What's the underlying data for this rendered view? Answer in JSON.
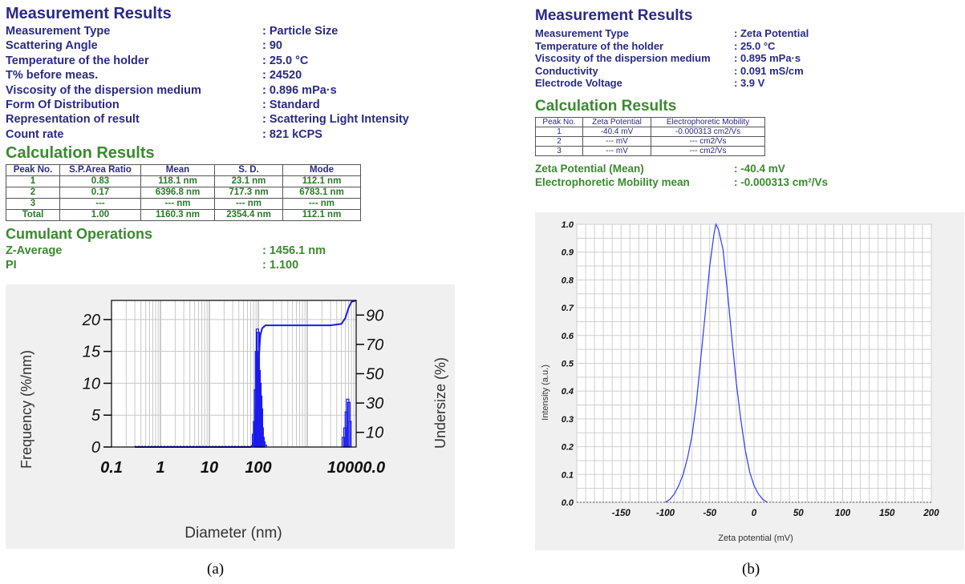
{
  "left": {
    "title": "Measurement Results",
    "rows": [
      {
        "label": "Measurement Type",
        "value": ":  Particle Size"
      },
      {
        "label": "Scattering Angle",
        "value": ":  90"
      },
      {
        "label": "Temperature of the holder",
        "value": ":  25.0  °C"
      },
      {
        "label": "T% before meas.",
        "value": ":  24520"
      },
      {
        "label": "Viscosity of the dispersion medium",
        "value": ":  0.896  mPa·s"
      },
      {
        "label": "Form Of Distribution",
        "value": ":  Standard"
      },
      {
        "label": "Representation of result",
        "value": ":  Scattering Light Intensity"
      },
      {
        "label": "Count rate",
        "value": ":  821  kCPS"
      }
    ],
    "calc_title": "Calculation Results",
    "table": {
      "headers": [
        "Peak No.",
        "S.P.Area Ratio",
        "Mean",
        "S. D.",
        "Mode"
      ],
      "rows": [
        [
          "1",
          "0.83",
          "118.1 nm",
          "23.1 nm",
          "112.1 nm"
        ],
        [
          "2",
          "0.17",
          "6396.8 nm",
          "717.3 nm",
          "6783.1 nm"
        ],
        [
          "3",
          "---",
          "--- nm",
          "--- nm",
          "--- nm"
        ],
        [
          "Total",
          "1.00",
          "1160.3 nm",
          "2354.4 nm",
          "112.1 nm"
        ]
      ]
    },
    "cumulant_title": "Cumulant Operations",
    "cumulant_rows": [
      {
        "label": "Z-Average",
        "value": ":  1456.1  nm"
      },
      {
        "label": "PI",
        "value": ":  1.100"
      }
    ],
    "caption": "(a)"
  },
  "right": {
    "title": "Measurement Results",
    "rows": [
      {
        "label": "Measurement Type",
        "value": ":  Zeta Potential"
      },
      {
        "label": "Temperature of the holder",
        "value": ":  25.0  °C"
      },
      {
        "label": "Viscosity of the dispersion medium",
        "value": ":  0.895  mPa·s"
      },
      {
        "label": "Conductivity",
        "value": ":  0.091  mS/cm"
      },
      {
        "label": "Electrode Voltage",
        "value": ":  3.9  V"
      }
    ],
    "calc_title": "Calculation Results",
    "table": {
      "headers": [
        "Peak No.",
        "Zeta Potential",
        "Electrophoretic Mobility"
      ],
      "rows": [
        [
          "1",
          "-40.4 mV",
          "-0.000313 cm2/Vs"
        ],
        [
          "2",
          "--- mV",
          "--- cm2/Vs"
        ],
        [
          "3",
          "--- mV",
          "--- cm2/Vs"
        ]
      ]
    },
    "summary_rows": [
      {
        "label": "Zeta Potential (Mean)",
        "value": ":  -40.4  mV"
      },
      {
        "label": "Electrophoretic Mobility mean",
        "value": ":  -0.000313  cm²/Vs"
      }
    ],
    "caption": "(b)"
  },
  "chart_data": [
    {
      "type": "bar",
      "xscale": "log",
      "xlabel": "Diameter (nm)",
      "ylabel": "Frequency  (%/nm)",
      "y2label": "Undersize  (%)",
      "xlim": [
        0.1,
        10000
      ],
      "ylim": [
        0,
        23
      ],
      "y2lim": [
        0,
        100
      ],
      "xticks": [
        "0.1",
        "1",
        "10",
        "100",
        "10000.0"
      ],
      "yticks": [
        "0",
        "5",
        "10",
        "15",
        "20"
      ],
      "y2ticks": [
        "10",
        "30",
        "50",
        "70",
        "90"
      ],
      "grid": true,
      "series": [
        {
          "kind": "bars",
          "x": [
            80,
            84,
            88,
            92,
            96,
            100,
            104,
            108,
            112,
            116,
            120,
            125,
            130,
            140,
            5500,
            5900,
            6300,
            6700,
            7100,
            7500
          ],
          "values": [
            2,
            4,
            9,
            15,
            18.5,
            18,
            12,
            10,
            8,
            6,
            3,
            1.5,
            0.8,
            0.3,
            1.5,
            3,
            5.5,
            7.5,
            7,
            4
          ]
        },
        {
          "kind": "line",
          "x": [
            0.3,
            70,
            80,
            90,
            100,
            110,
            120,
            140,
            200,
            500,
            1000,
            3000,
            5000,
            6000,
            7000,
            8000,
            10000
          ],
          "values": [
            0,
            0,
            2,
            20,
            55,
            76,
            81,
            83,
            83,
            83,
            83,
            83,
            84,
            88,
            95,
            99,
            100
          ]
        }
      ]
    },
    {
      "type": "line",
      "xlabel": "Zeta potential (mV)",
      "ylabel": "Intensity (a.u.)",
      "xlim": [
        -200,
        200
      ],
      "ylim": [
        0,
        1
      ],
      "xticks": [
        "-150",
        "-100",
        "-50",
        "0",
        "50",
        "100",
        "150",
        "200"
      ],
      "yticks": [
        "0.0",
        "0.1",
        "0.2",
        "0.3",
        "0.4",
        "0.5",
        "0.6",
        "0.7",
        "0.8",
        "0.9",
        "1.0"
      ],
      "grid": true,
      "series": [
        {
          "x": [
            -100,
            -95,
            -90,
            -85,
            -80,
            -75,
            -70,
            -65,
            -60,
            -55,
            -50,
            -45,
            -43,
            -40,
            -35,
            -30,
            -25,
            -20,
            -15,
            -10,
            -5,
            0,
            5,
            10,
            15
          ],
          "values": [
            0,
            0.01,
            0.03,
            0.06,
            0.1,
            0.16,
            0.24,
            0.36,
            0.52,
            0.68,
            0.85,
            0.97,
            1.0,
            0.98,
            0.91,
            0.76,
            0.59,
            0.43,
            0.3,
            0.19,
            0.11,
            0.06,
            0.03,
            0.01,
            0.0
          ]
        }
      ]
    }
  ]
}
